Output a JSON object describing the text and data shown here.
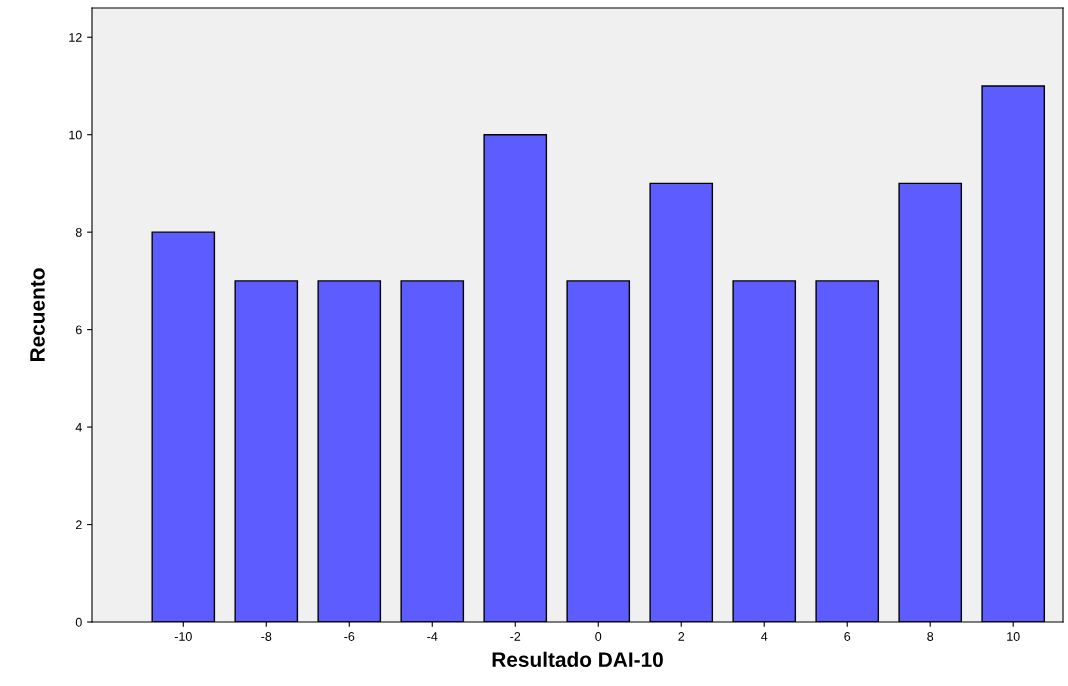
{
  "chart_data": {
    "type": "bar",
    "xlabel": "Resultado DAI-10",
    "ylabel": "Recuento",
    "categories": [
      "-10",
      "-8",
      "-6",
      "-4",
      "-2",
      "0",
      "2",
      "4",
      "6",
      "8",
      "10"
    ],
    "values": [
      8,
      7,
      7,
      7,
      10,
      7,
      9,
      7,
      7,
      9,
      11
    ],
    "color": "#5c5cff",
    "ylim": [
      0,
      12.6
    ],
    "yticks": [
      0,
      2,
      4,
      6,
      8,
      10,
      12
    ],
    "grid": false
  }
}
